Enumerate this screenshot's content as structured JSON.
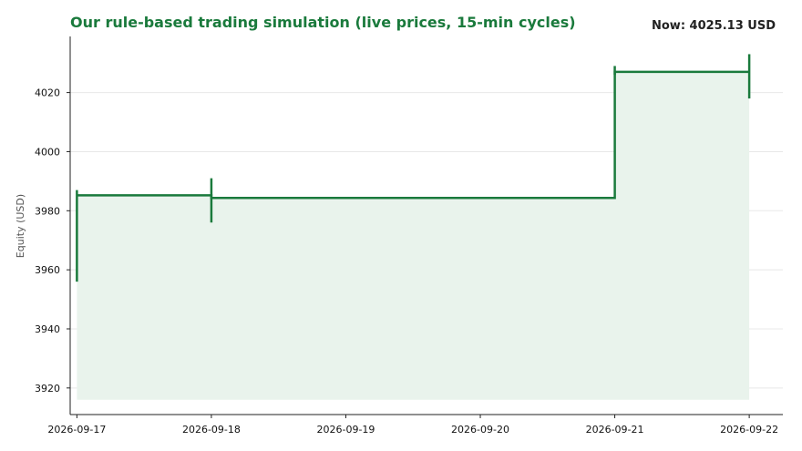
{
  "header": {
    "title": "Our rule-based trading simulation (live prices, 15-min cycles)",
    "now_label": "Now: 4025.13 USD"
  },
  "colors": {
    "line": "#1a7a3c",
    "fill": "#e9f3ec",
    "grid": "#e8e8e8",
    "axis": "#222222"
  },
  "chart_data": {
    "type": "line",
    "step": true,
    "title": "Our rule-based trading simulation (live prices, 15-min cycles)",
    "xlabel": "",
    "ylabel": "Equity (USD)",
    "xlim": [
      "2026-09-16T22:48",
      "2026-09-22T06:00"
    ],
    "ylim": [
      3911,
      4039
    ],
    "x_ticks": [
      "2026-09-17",
      "2026-09-18",
      "2026-09-19",
      "2026-09-20",
      "2026-09-21",
      "2026-09-22"
    ],
    "y_ticks": [
      3920,
      3940,
      3960,
      3980,
      4000,
      4020
    ],
    "grid": "horizontal",
    "fill_baseline": 3916,
    "series": [
      {
        "x": [
          "2026-09-17T00:00",
          "2026-09-18T00:00",
          "2026-09-21T00:00",
          "2026-09-22T00:00"
        ],
        "y": [
          3985.2,
          3984.3,
          4027.0,
          4027.0
        ]
      }
    ],
    "spikes": [
      {
        "x": "2026-09-17T00:00",
        "low": 3956,
        "high": 3987
      },
      {
        "x": "2026-09-18T00:00",
        "low": 3976,
        "high": 3991
      },
      {
        "x": "2026-09-21T00:00",
        "low": 4026,
        "high": 4029
      },
      {
        "x": "2026-09-22T00:00",
        "low": 4018,
        "high": 4033
      }
    ]
  }
}
